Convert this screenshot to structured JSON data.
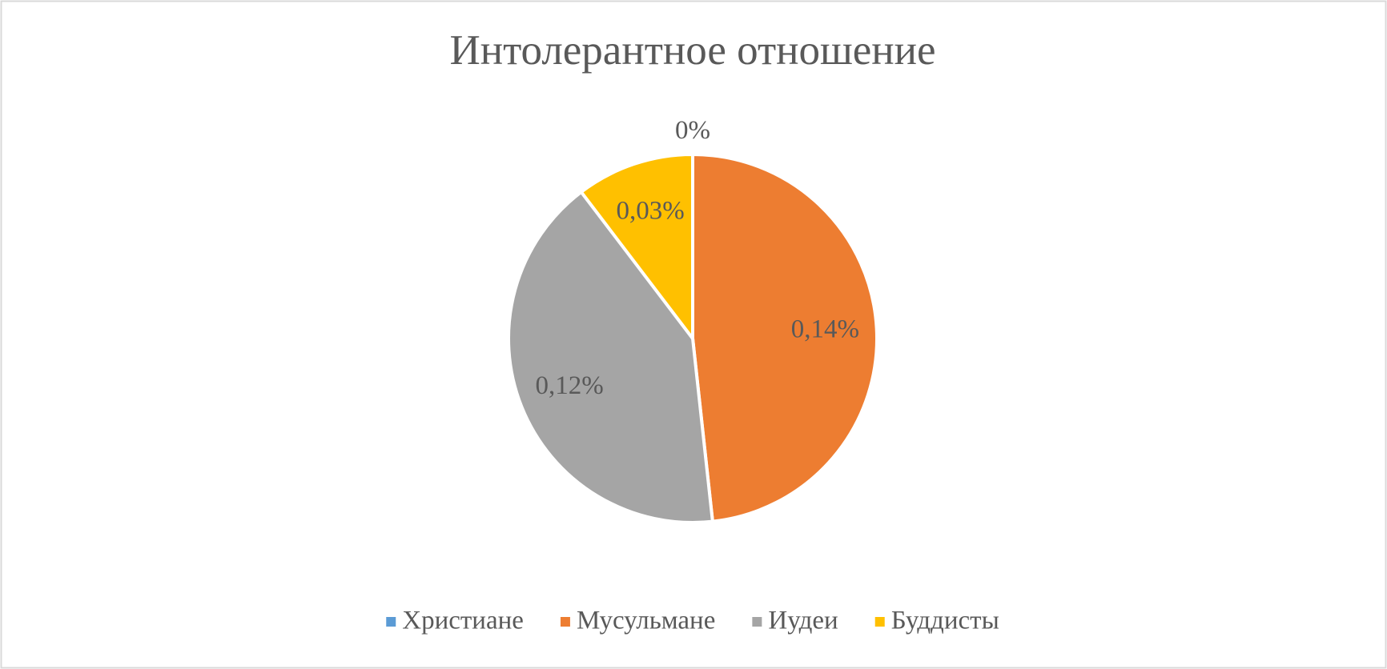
{
  "chart_data": {
    "type": "pie",
    "title": "Интолерантное отношение",
    "categories": [
      "Христиане",
      "Мусульмане",
      "Иудеи",
      "Буддисты"
    ],
    "values": [
      0,
      0.14,
      0.12,
      0.03
    ],
    "value_labels": [
      "0%",
      "0,14%",
      "0,12%",
      "0,03%"
    ],
    "colors": [
      "#5b9bd5",
      "#ed7d31",
      "#a5a5a5",
      "#ffc000"
    ],
    "legend": "bottom"
  }
}
